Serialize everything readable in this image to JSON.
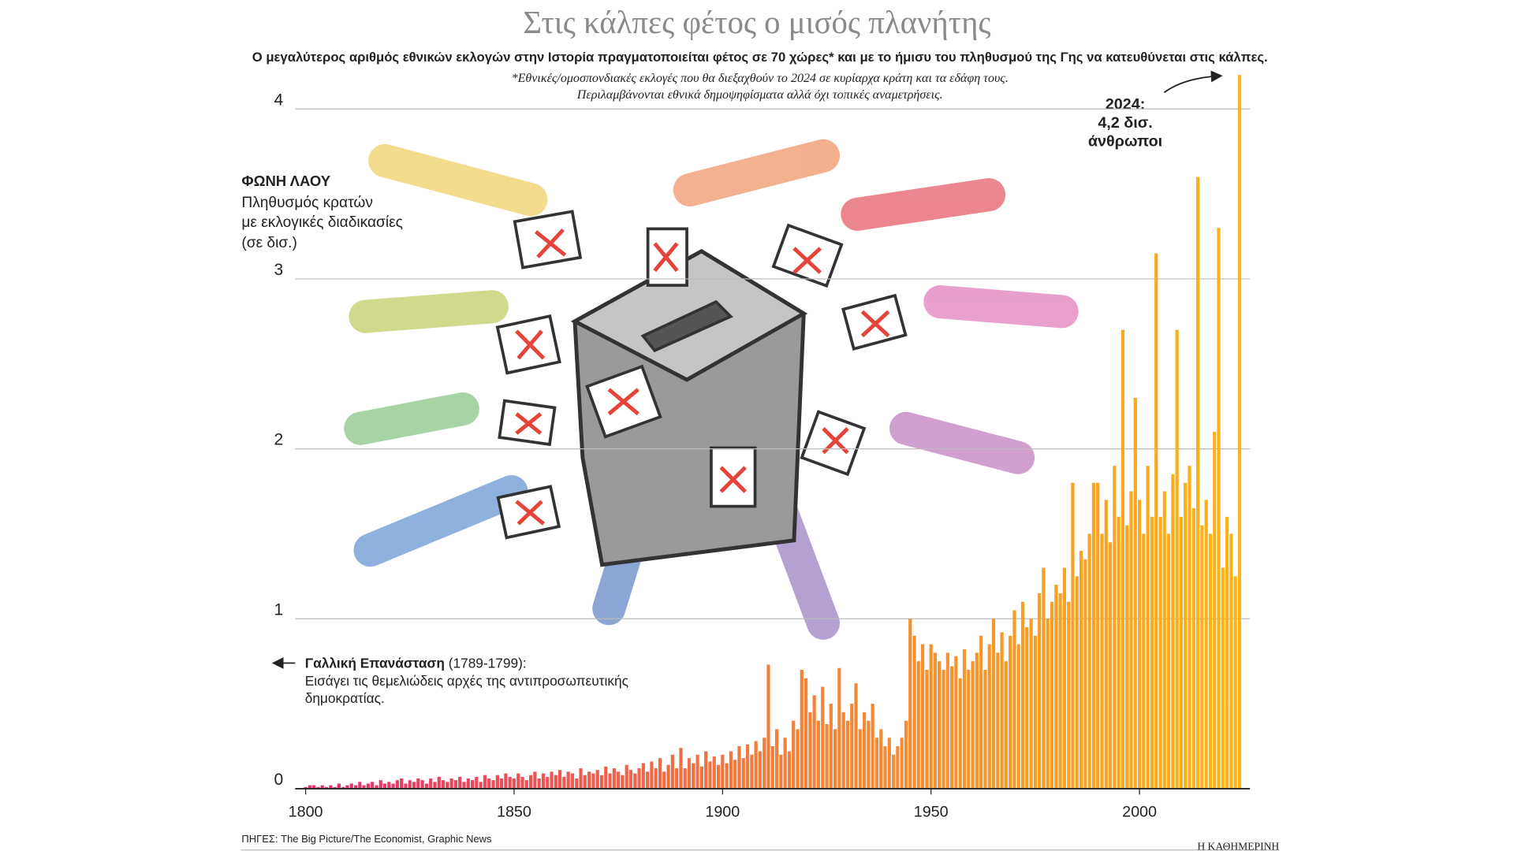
{
  "title": "Στις κάλπες φέτος ο μισός πλανήτης",
  "subtitle": "Ο μεγαλύτερος αριθμός εθνικών εκλογών στην Ιστορία πραγματοποιείται φέτος σε 70 χώρες* και με το ήμισυ του πληθυσμού της Γης να κατευθύνεται στις κάλπες.",
  "footnote": [
    "*Εθνικές/ομοσπονδιακές εκλογές που θα διεξαχθούν το 2024 σε κυρίαρχα κράτη και τα εδάφη τους.",
    "Περιλαμβάνονται εθνικά δημοψηφίσματα αλλά όχι τοπικές αναμετρήσεις."
  ],
  "source": "ΠΗΓΕΣ: The Big Picture/The Economist, Graphic News",
  "publisher": "Η ΚΑΘΗΜΕΡΙΝΗ",
  "chart_data": {
    "type": "bar",
    "y_label_title": "ΦΩΝΗ ΛΑΟΥ",
    "y_label": [
      "Πληθυσμός κρατών",
      "με εκλογικές διαδικασίες",
      "(σε δισ.)"
    ],
    "annotations": [
      {
        "lines": [
          "2024:",
          "4,2 δισ.",
          "άνθρωποι"
        ]
      },
      {
        "bold": "Γαλλική Επανάσταση",
        "rest": "(1789-1799):",
        "lines": [
          "Εισάγει τις θεμελιώδεις αρχές της αντιπροσωπευτικής",
          "δημοκρατίας."
        ]
      }
    ],
    "colors": [
      "#e42c6c",
      "#f07f3d",
      "#fbb517"
    ],
    "xlim": [
      1797.5,
      2026.5
    ],
    "xticks": [
      1800,
      1850,
      1900,
      1950,
      2000
    ],
    "ylim": [
      0,
      4.2
    ],
    "yticks": [
      0,
      1,
      2,
      3,
      4
    ],
    "grid": true,
    "x": [
      1800,
      1801,
      1802,
      1803,
      1804,
      1805,
      1806,
      1807,
      1808,
      1809,
      1810,
      1811,
      1812,
      1813,
      1814,
      1815,
      1816,
      1817,
      1818,
      1819,
      1820,
      1821,
      1822,
      1823,
      1824,
      1825,
      1826,
      1827,
      1828,
      1829,
      1830,
      1831,
      1832,
      1833,
      1834,
      1835,
      1836,
      1837,
      1838,
      1839,
      1840,
      1841,
      1842,
      1843,
      1844,
      1845,
      1846,
      1847,
      1848,
      1849,
      1850,
      1851,
      1852,
      1853,
      1854,
      1855,
      1856,
      1857,
      1858,
      1859,
      1860,
      1861,
      1862,
      1863,
      1864,
      1865,
      1866,
      1867,
      1868,
      1869,
      1870,
      1871,
      1872,
      1873,
      1874,
      1875,
      1876,
      1877,
      1878,
      1879,
      1880,
      1881,
      1882,
      1883,
      1884,
      1885,
      1886,
      1887,
      1888,
      1889,
      1890,
      1891,
      1892,
      1893,
      1894,
      1895,
      1896,
      1897,
      1898,
      1899,
      1900,
      1901,
      1902,
      1903,
      1904,
      1905,
      1906,
      1907,
      1908,
      1909,
      1910,
      1911,
      1912,
      1913,
      1914,
      1915,
      1916,
      1917,
      1918,
      1919,
      1920,
      1921,
      1922,
      1923,
      1924,
      1925,
      1926,
      1927,
      1928,
      1929,
      1930,
      1931,
      1932,
      1933,
      1934,
      1935,
      1936,
      1937,
      1938,
      1939,
      1940,
      1941,
      1942,
      1943,
      1944,
      1945,
      1946,
      1947,
      1948,
      1949,
      1950,
      1951,
      1952,
      1953,
      1954,
      1955,
      1956,
      1957,
      1958,
      1959,
      1960,
      1961,
      1962,
      1963,
      1964,
      1965,
      1966,
      1967,
      1968,
      1969,
      1970,
      1971,
      1972,
      1973,
      1974,
      1975,
      1976,
      1977,
      1978,
      1979,
      1980,
      1981,
      1982,
      1983,
      1984,
      1985,
      1986,
      1987,
      1988,
      1989,
      1990,
      1991,
      1992,
      1993,
      1994,
      1995,
      1996,
      1997,
      1998,
      1999,
      2000,
      2001,
      2002,
      2003,
      2004,
      2005,
      2006,
      2007,
      2008,
      2009,
      2010,
      2011,
      2012,
      2013,
      2014,
      2015,
      2016,
      2017,
      2018,
      2019,
      2020,
      2021,
      2022,
      2023,
      2024
    ],
    "values": [
      0.01,
      0.02,
      0.02,
      0.01,
      0.02,
      0.01,
      0.02,
      0.01,
      0.03,
      0.01,
      0.02,
      0.03,
      0.02,
      0.04,
      0.02,
      0.03,
      0.04,
      0.02,
      0.05,
      0.03,
      0.04,
      0.03,
      0.05,
      0.06,
      0.03,
      0.05,
      0.04,
      0.06,
      0.05,
      0.03,
      0.06,
      0.04,
      0.07,
      0.05,
      0.04,
      0.06,
      0.05,
      0.07,
      0.04,
      0.06,
      0.05,
      0.07,
      0.04,
      0.08,
      0.06,
      0.05,
      0.08,
      0.06,
      0.09,
      0.07,
      0.06,
      0.09,
      0.07,
      0.05,
      0.08,
      0.1,
      0.06,
      0.09,
      0.07,
      0.1,
      0.08,
      0.11,
      0.07,
      0.1,
      0.09,
      0.06,
      0.12,
      0.08,
      0.1,
      0.09,
      0.11,
      0.08,
      0.13,
      0.09,
      0.12,
      0.1,
      0.08,
      0.14,
      0.11,
      0.09,
      0.12,
      0.15,
      0.1,
      0.16,
      0.12,
      0.18,
      0.1,
      0.14,
      0.2,
      0.12,
      0.24,
      0.12,
      0.18,
      0.15,
      0.2,
      0.13,
      0.22,
      0.16,
      0.19,
      0.14,
      0.2,
      0.15,
      0.22,
      0.17,
      0.25,
      0.18,
      0.26,
      0.2,
      0.28,
      0.22,
      0.3,
      0.73,
      0.25,
      0.35,
      0.2,
      0.3,
      0.22,
      0.4,
      0.35,
      0.7,
      0.65,
      0.45,
      0.55,
      0.4,
      0.6,
      0.38,
      0.5,
      0.35,
      0.71,
      0.45,
      0.4,
      0.5,
      0.62,
      0.35,
      0.45,
      0.4,
      0.5,
      0.3,
      0.35,
      0.25,
      0.3,
      0.2,
      0.25,
      0.3,
      0.4,
      1.0,
      0.9,
      0.75,
      0.85,
      0.7,
      0.85,
      0.8,
      0.75,
      0.7,
      0.8,
      0.72,
      0.78,
      0.65,
      0.82,
      0.7,
      0.75,
      0.8,
      0.9,
      0.7,
      0.85,
      1.0,
      0.8,
      0.92,
      0.75,
      0.9,
      1.05,
      0.85,
      1.1,
      0.95,
      1.0,
      0.9,
      1.15,
      1.3,
      1.0,
      1.1,
      1.2,
      1.15,
      1.3,
      1.1,
      1.8,
      1.25,
      1.4,
      1.35,
      1.5,
      1.8,
      1.8,
      1.5,
      1.7,
      1.45,
      1.9,
      1.6,
      2.7,
      1.55,
      1.75,
      2.3,
      1.7,
      1.5,
      1.9,
      1.6,
      3.15,
      1.6,
      1.75,
      1.5,
      1.85,
      2.7,
      1.6,
      1.8,
      1.9,
      1.65,
      3.6,
      1.55,
      1.7,
      1.5,
      2.1,
      3.3,
      1.3,
      1.6,
      1.5,
      1.25,
      4.2
    ]
  }
}
